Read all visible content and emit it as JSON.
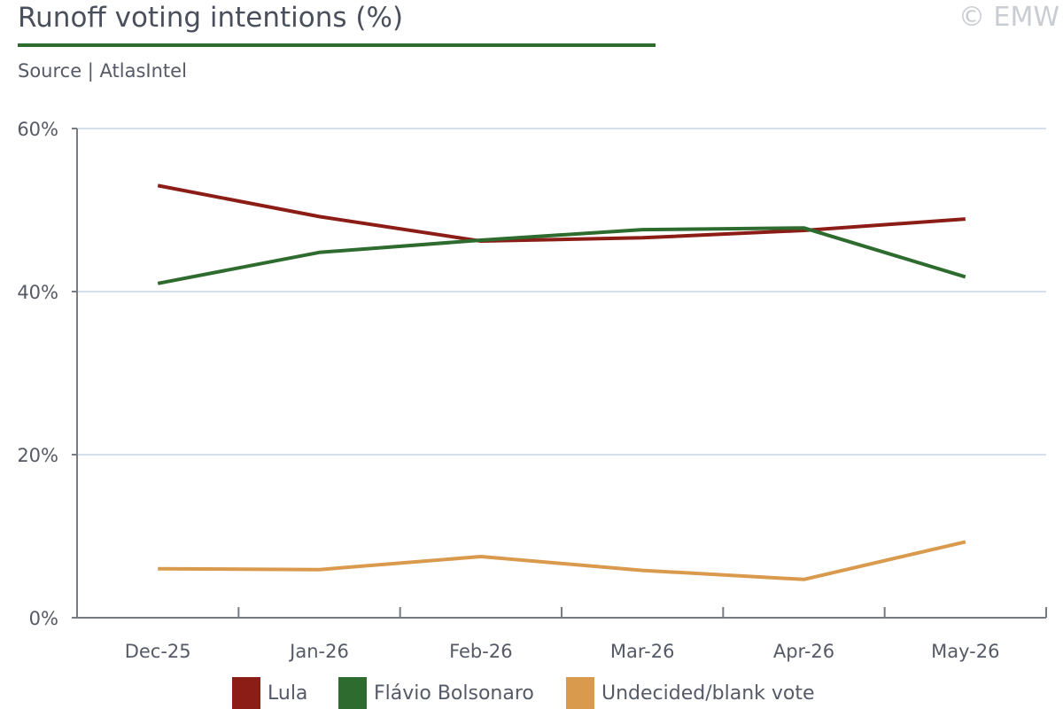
{
  "header": {
    "title": "Runoff voting intentions (%)",
    "copyright": "© EMW",
    "source": "Source | AtlasIntel"
  },
  "colors": {
    "title_rule": "#2e6b2e",
    "grid": "#d5e0ec",
    "axis": "#777b84"
  },
  "chart_data": {
    "type": "line",
    "title": "Runoff voting intentions (%)",
    "source": "Source | AtlasIntel",
    "categories": [
      "Dec-25",
      "Jan-26",
      "Feb-26",
      "Mar-26",
      "Apr-26",
      "May-26"
    ],
    "ylim": [
      0,
      60
    ],
    "yticks": [
      0,
      20,
      40,
      60
    ],
    "ytick_labels": [
      "0%",
      "20%",
      "40%",
      "60%"
    ],
    "grid": true,
    "legend_position": "bottom",
    "series": [
      {
        "name": "Lula",
        "color": "#8b1d16",
        "values": [
          53.0,
          49.2,
          46.2,
          46.6,
          47.5,
          48.9
        ]
      },
      {
        "name": "Flávio Bolsonaro",
        "color": "#2e6b2e",
        "values": [
          41.0,
          44.8,
          46.3,
          47.6,
          47.8,
          41.8
        ]
      },
      {
        "name": "Undecided/blank vote",
        "color": "#d99a4e",
        "values": [
          6.0,
          5.9,
          7.5,
          5.8,
          4.7,
          9.3
        ]
      }
    ]
  }
}
